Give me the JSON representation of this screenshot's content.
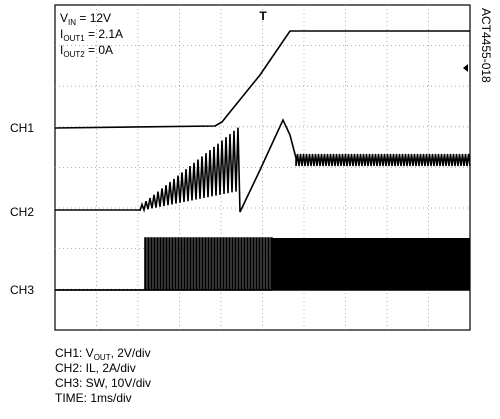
{
  "annotations": [
    {
      "main": "V",
      "sub": "IN",
      "rest": " = 12V"
    },
    {
      "main": "I",
      "sub": "OUT1",
      "rest": " = 2.1A"
    },
    {
      "main": "I",
      "sub": "OUT2",
      "rest": " = 0A"
    }
  ],
  "channels": [
    "CH1",
    "CH2",
    "CH3"
  ],
  "figure_id": "ACT4455-018",
  "captions": [
    {
      "main": "CH1: V",
      "sub": "OUT",
      "rest": ", 2V/div"
    },
    {
      "main": "CH2: IL, 2A/div"
    },
    {
      "main": "CH3: SW, 10V/div"
    },
    {
      "main": "TIME: 1ms/div"
    }
  ]
}
